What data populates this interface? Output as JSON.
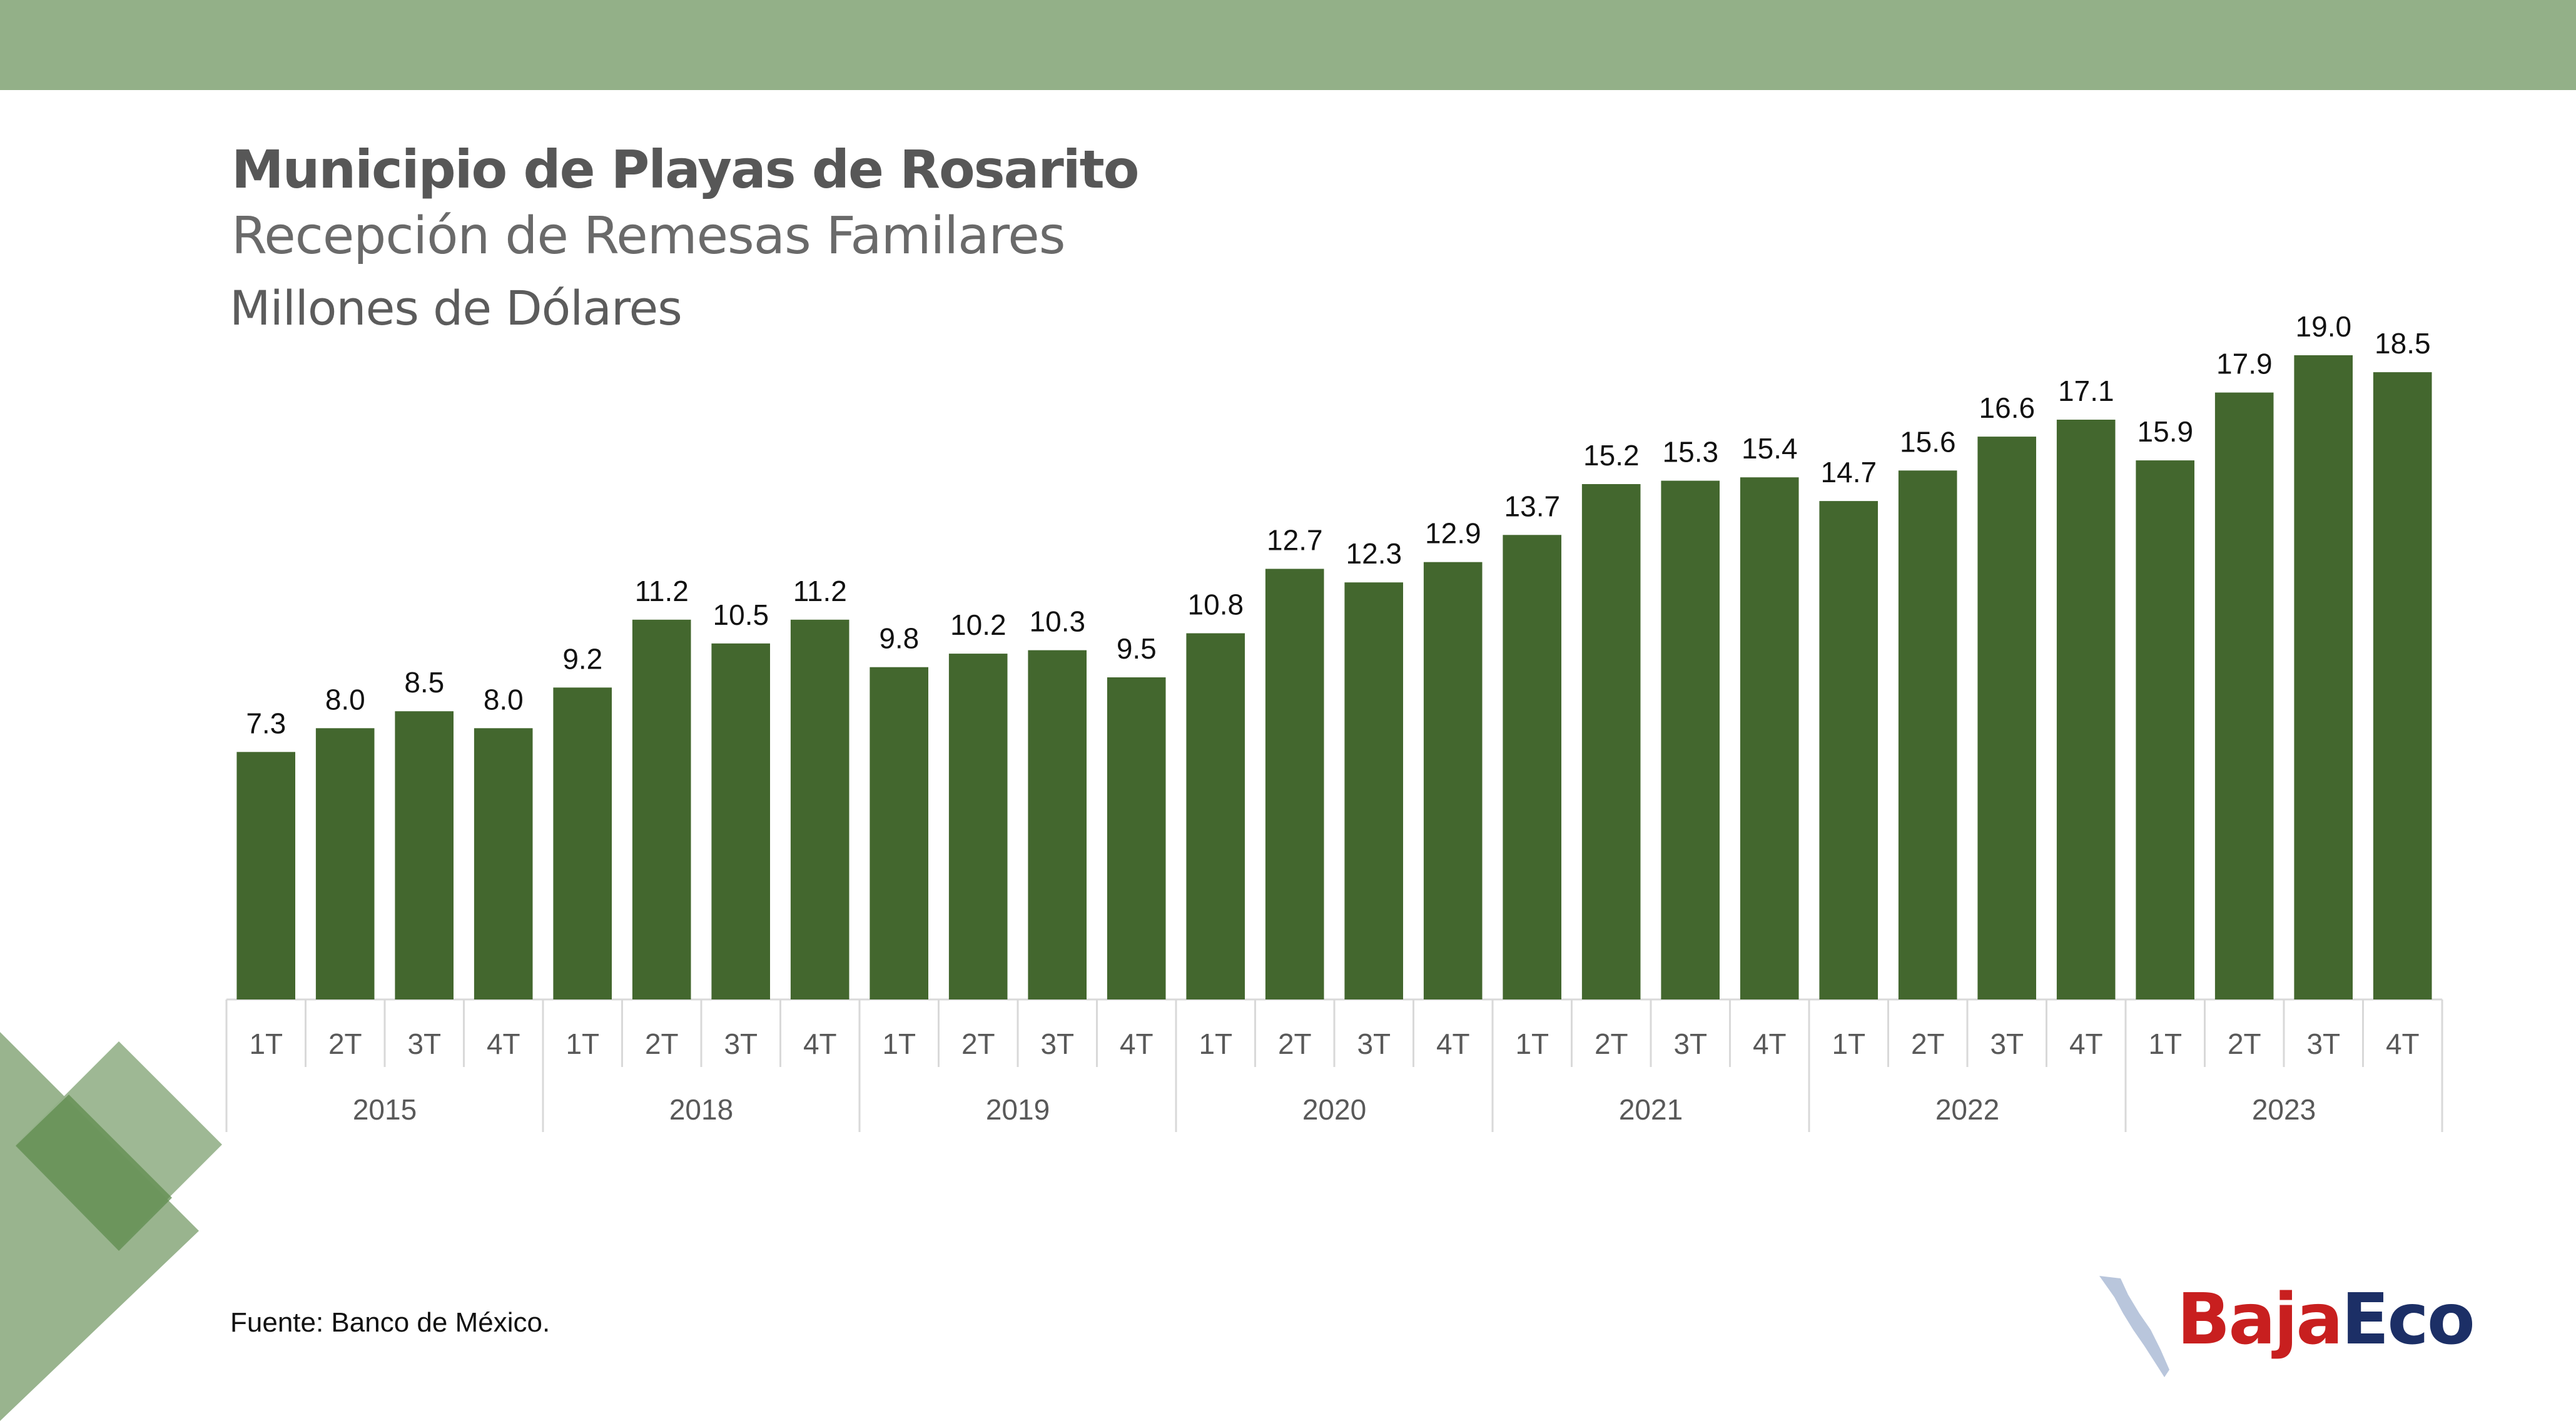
{
  "header": {
    "title": "Municipio de Playas de Rosarito",
    "subtitle": "Recepción de Remesas Familares",
    "unit": "Millones de Dólares"
  },
  "footer": {
    "source": "Fuente: Banco de México.",
    "logo_part1": "Baja",
    "logo_part2": "Eco"
  },
  "colors": {
    "bar": "#43672e",
    "topbar": "#93b088",
    "deco_light": "#93b088",
    "deco_dark": "#5f8c4e"
  },
  "chart_data": {
    "type": "bar",
    "title": "Municipio de Playas de Rosarito",
    "subtitle": "Recepción de Remesas Familares",
    "ylabel": "Millones de Dólares",
    "xlabel": "",
    "grid": false,
    "legend": "none",
    "ylim": [
      0,
      19.0
    ],
    "groups": [
      {
        "label": "2015",
        "categories": [
          "1T",
          "2T",
          "3T",
          "4T"
        ],
        "values": [
          7.3,
          8.0,
          8.5,
          8.0
        ]
      },
      {
        "label": "2018",
        "categories": [
          "1T",
          "2T",
          "3T",
          "4T"
        ],
        "values": [
          9.2,
          11.2,
          10.5,
          11.2
        ]
      },
      {
        "label": "2019",
        "categories": [
          "1T",
          "2T",
          "3T",
          "4T"
        ],
        "values": [
          9.8,
          10.2,
          10.3,
          9.5
        ]
      },
      {
        "label": "2020",
        "categories": [
          "1T",
          "2T",
          "3T",
          "4T"
        ],
        "values": [
          10.8,
          12.7,
          12.3,
          12.9
        ]
      },
      {
        "label": "2021",
        "categories": [
          "1T",
          "2T",
          "3T",
          "4T"
        ],
        "values": [
          13.7,
          15.2,
          15.3,
          15.4
        ]
      },
      {
        "label": "2022",
        "categories": [
          "1T",
          "2T",
          "3T",
          "4T"
        ],
        "values": [
          14.7,
          15.6,
          16.6,
          17.1
        ]
      },
      {
        "label": "2023",
        "categories": [
          "1T",
          "2T",
          "3T",
          "4T"
        ],
        "values": [
          15.9,
          17.9,
          19.0,
          18.5
        ]
      }
    ]
  }
}
